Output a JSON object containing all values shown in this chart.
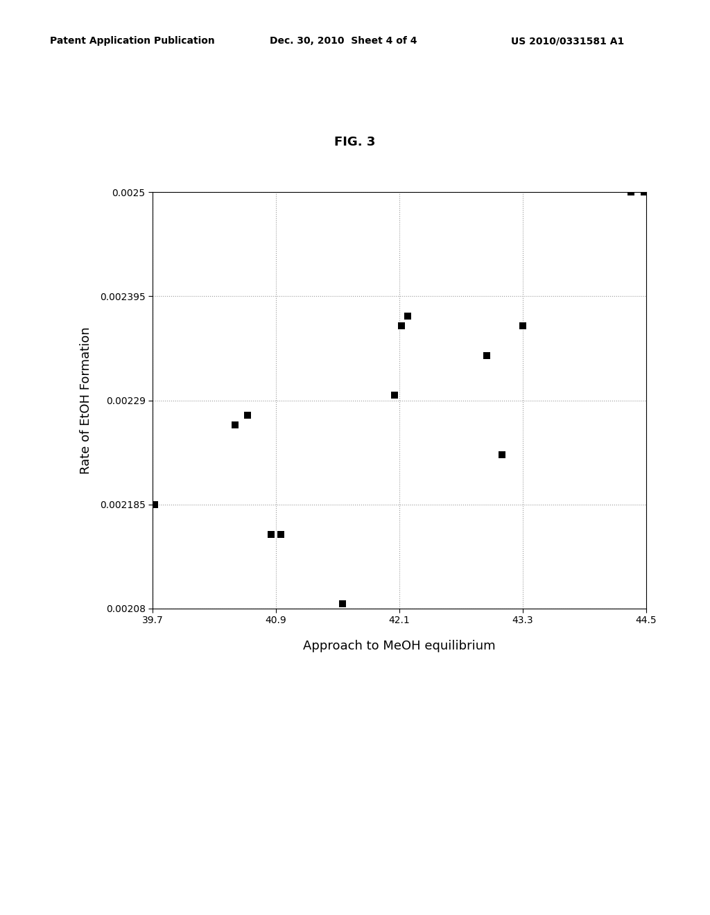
{
  "title": "FIG. 3",
  "xlabel": "Approach to MeOH equilibrium",
  "ylabel": "Rate of EtOH Formation",
  "x_ticks": [
    39.7,
    40.9,
    42.1,
    43.3,
    44.5
  ],
  "y_ticks": [
    0.00208,
    0.002185,
    0.00229,
    0.002395,
    0.0025
  ],
  "y_tick_labels": [
    "0.00208",
    "0.002185",
    "0.00229",
    "0.002395",
    "0.0025"
  ],
  "xlim": [
    39.7,
    44.5
  ],
  "ylim": [
    0.00208,
    0.0025
  ],
  "scatter_x": [
    39.72,
    40.5,
    40.62,
    40.85,
    40.95,
    41.55,
    42.05,
    42.12,
    42.18,
    42.95,
    43.1,
    43.3,
    44.35,
    44.48,
    44.5
  ],
  "scatter_y": [
    0.002185,
    0.002265,
    0.002275,
    0.002155,
    0.002155,
    0.002085,
    0.002295,
    0.002365,
    0.002375,
    0.002335,
    0.002235,
    0.002365,
    0.0025,
    0.0025,
    0.0025
  ],
  "marker_color": "#000000",
  "marker_size": 55,
  "background_color": "#ffffff",
  "grid_color": "#999999",
  "header_left": "Patent Application Publication",
  "header_center": "Dec. 30, 2010  Sheet 4 of 4",
  "header_right": "US 2010/0331581 A1",
  "title_fontsize": 13,
  "label_fontsize": 13,
  "tick_fontsize": 10,
  "header_fontsize": 10
}
